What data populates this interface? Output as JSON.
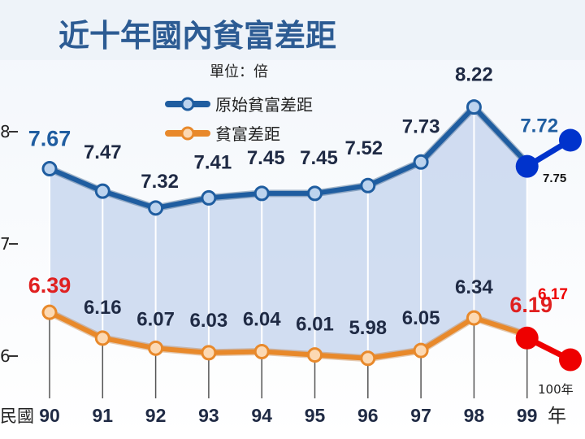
{
  "title": "近十年國內貧富差距",
  "unit": "單位：倍",
  "x_axis_prefix": "民國",
  "x_axis_suffix": "年",
  "colors": {
    "series1": "#1f5da0",
    "series2": "#e8892b",
    "fill": "#c9d7ee",
    "red": "#e02020",
    "ext_blue": "#0033cc",
    "ext_red": "#ee0000",
    "title": "#2c5b93"
  },
  "chart_data": {
    "type": "line",
    "title": "近十年國內貧富差距",
    "ylabel": "單位：倍",
    "categories": [
      "90",
      "91",
      "92",
      "93",
      "94",
      "95",
      "96",
      "97",
      "98",
      "99"
    ],
    "y_ticks": [
      {
        "label": "8",
        "value": 8
      },
      {
        "label": "7",
        "value": 7
      },
      {
        "label": "6",
        "value": 6
      }
    ],
    "series": [
      {
        "name": "原始貧富差距",
        "values": [
          7.67,
          7.47,
          7.32,
          7.41,
          7.45,
          7.45,
          7.52,
          7.73,
          8.22,
          7.72
        ],
        "labels": [
          "7.67",
          "7.47",
          "7.32",
          "7.41",
          "7.45",
          "7.45",
          "7.52",
          "7.73",
          "8.22",
          "7.72"
        ]
      },
      {
        "name": "貧富差距",
        "values": [
          6.39,
          6.16,
          6.07,
          6.03,
          6.04,
          6.01,
          5.98,
          6.05,
          6.34,
          6.19
        ],
        "labels": [
          "6.39",
          "6.16",
          "6.07",
          "6.03",
          "6.04",
          "6.01",
          "5.98",
          "6.05",
          "6.34",
          "6.19"
        ]
      }
    ],
    "extension": {
      "year_label": "100年",
      "blue_value": 7.75,
      "blue_label": "7.75",
      "red_value": 6.17,
      "red_label": "6.17"
    }
  }
}
